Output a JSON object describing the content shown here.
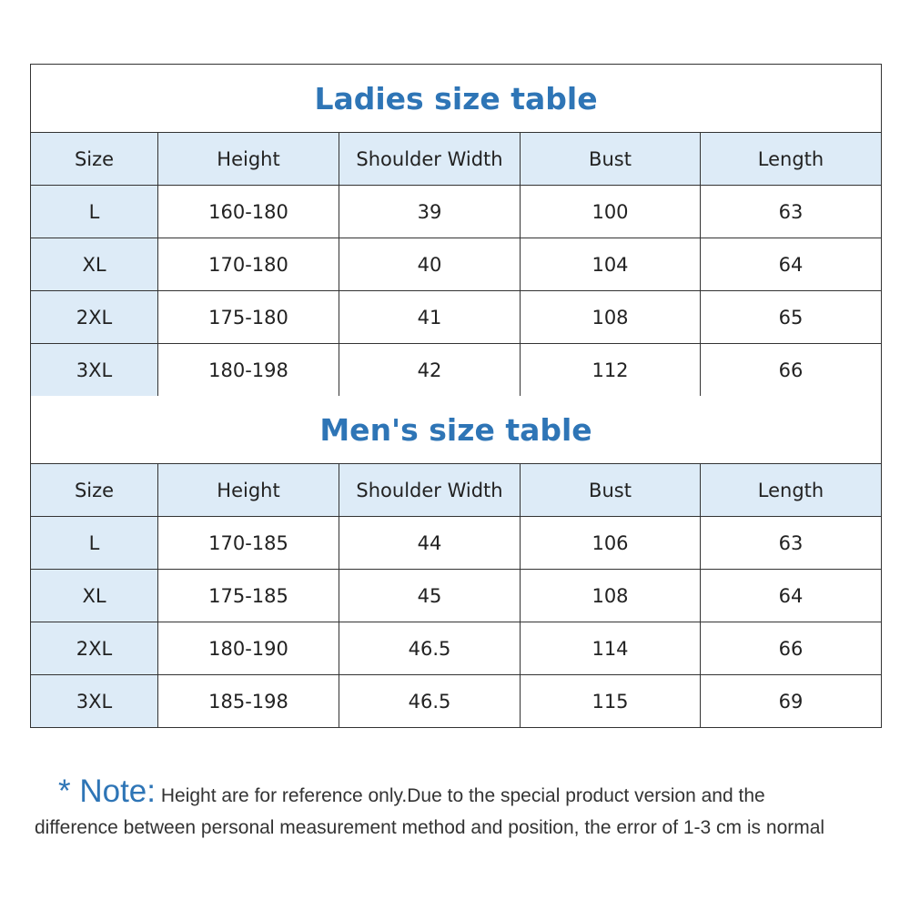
{
  "colors": {
    "accent": "#2e75b6",
    "header_bg": "#ddebf7",
    "border": "#333333"
  },
  "ladies": {
    "title": "Ladies size table",
    "headers": [
      "Size",
      "Height",
      "Shoulder Width",
      "Bust",
      "Length"
    ],
    "rows": [
      [
        "L",
        "160-180",
        "39",
        "100",
        "63"
      ],
      [
        "XL",
        "170-180",
        "40",
        "104",
        "64"
      ],
      [
        "2XL",
        "175-180",
        "41",
        "108",
        "65"
      ],
      [
        "3XL",
        "180-198",
        "42",
        "112",
        "66"
      ]
    ]
  },
  "men": {
    "title": "Men's size table",
    "headers": [
      "Size",
      "Height",
      "Shoulder Width",
      "Bust",
      "Length"
    ],
    "rows": [
      [
        "L",
        "170-185",
        "44",
        "106",
        "63"
      ],
      [
        "XL",
        "175-185",
        "45",
        "108",
        "64"
      ],
      [
        "2XL",
        "180-190",
        "46.5",
        "114",
        "66"
      ],
      [
        "3XL",
        "185-198",
        "46.5",
        "115",
        "69"
      ]
    ]
  },
  "note": {
    "label": "* Note:",
    "line1": "Height are for reference only.Due to the special product version and the",
    "line2": "difference between personal measurement method and position, the error of 1-3 cm is normal"
  }
}
